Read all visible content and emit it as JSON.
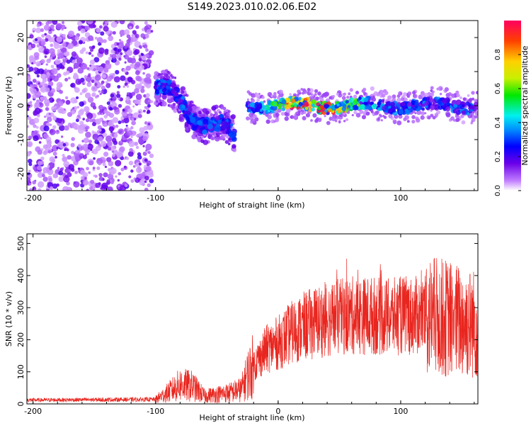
{
  "title": "S149.2023.010.02.06.E02",
  "chart_data": [
    {
      "type": "heatmap",
      "xlabel": "Height of straight line (km)",
      "ylabel": "Frequency (Hz)",
      "xlim": [
        -205,
        163
      ],
      "ylim": [
        -25,
        25
      ],
      "xticks": [
        -200,
        -100,
        0,
        100
      ],
      "yticks": [
        -20,
        -10,
        0,
        10,
        20
      ],
      "colorbar": {
        "label": "Normalized spectral amplitude",
        "range": [
          0,
          1
        ],
        "ticks": [
          0.0,
          0.2,
          0.4,
          0.6,
          0.8
        ],
        "colormap": "rainbow (white-purple-blue-cyan-green-yellow-red)"
      },
      "features": {
        "noise_region_x": [
          -205,
          -103
        ],
        "noise_region_y": [
          -25,
          25
        ],
        "drift_track_x": [
          -100,
          -35
        ],
        "drift_track_y": [
          5,
          -10
        ],
        "ridge_x": [
          -25,
          163
        ],
        "ridge_y": [
          0,
          0
        ],
        "ridge_peak_amplitude": 0.9
      },
      "grid": false
    },
    {
      "type": "line",
      "xlabel": "Height of straight line (km)",
      "ylabel": "SNR (10 * v/v)",
      "xlim": [
        -205,
        163
      ],
      "ylim": [
        0,
        530
      ],
      "xticks": [
        -200,
        -100,
        0,
        100
      ],
      "yticks": [
        0,
        100,
        200,
        300,
        400,
        500
      ],
      "series_color": "#e8261f",
      "envelope": {
        "x": [
          -205,
          -100,
          -90,
          -80,
          -70,
          -60,
          -50,
          -40,
          -30,
          -25,
          -20,
          -10,
          0,
          10,
          20,
          30,
          40,
          50,
          60,
          70,
          80,
          90,
          100,
          110,
          120,
          130,
          140,
          150,
          160,
          163
        ],
        "y": [
          12,
          14,
          35,
          60,
          55,
          25,
          30,
          35,
          45,
          90,
          120,
          170,
          190,
          220,
          240,
          255,
          265,
          270,
          275,
          275,
          275,
          270,
          275,
          275,
          275,
          270,
          265,
          255,
          250,
          245
        ]
      },
      "grid": false
    }
  ]
}
